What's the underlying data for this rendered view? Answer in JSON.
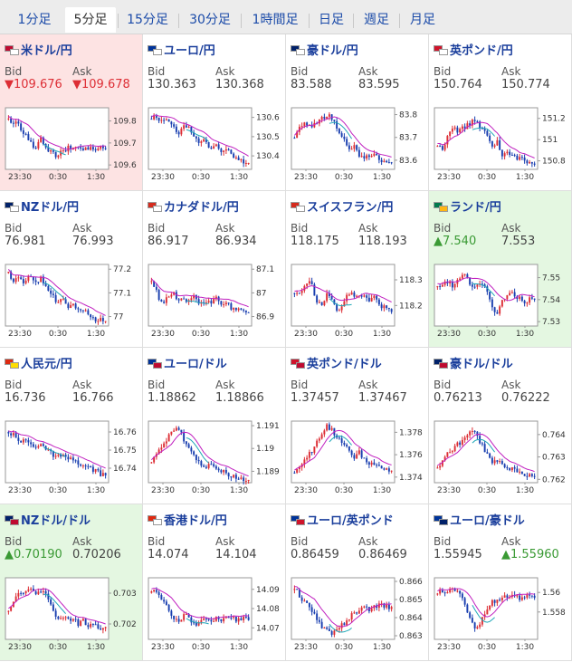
{
  "tabs": [
    {
      "label": "1分足",
      "active": false
    },
    {
      "label": "5分足",
      "active": true
    },
    {
      "label": "15分足",
      "active": false
    },
    {
      "label": "30分足",
      "active": false
    },
    {
      "label": "1時間足",
      "active": false
    },
    {
      "label": "日足",
      "active": false
    },
    {
      "label": "週足",
      "active": false
    },
    {
      "label": "月足",
      "active": false
    }
  ],
  "labels": {
    "bid": "Bid",
    "ask": "Ask"
  },
  "x_ticks": [
    "23:30",
    "0:30",
    "1:30"
  ],
  "colors": {
    "up": "#dd2e35",
    "down": "#1a3fb0",
    "ma": "#c020c0",
    "trend": "#20a8b8"
  },
  "pairs": [
    {
      "name": "米ドル/円",
      "flags": [
        "#bf0a30",
        "#ffffff"
      ],
      "bid": "109.676",
      "ask": "109.678",
      "dir": "down",
      "highlight": "red",
      "bid_arrow": true,
      "ask_arrow": true,
      "y_ticks": [
        "109.8",
        "109.7",
        "109.6"
      ],
      "range": [
        109.58,
        109.86
      ],
      "prices": [
        109.8,
        109.79,
        109.78,
        109.74,
        109.7,
        109.68,
        109.72,
        109.67,
        109.66,
        109.64,
        109.66,
        109.68,
        109.67,
        109.68,
        109.67,
        109.68,
        109.67,
        109.68,
        109.676
      ]
    },
    {
      "name": "ユーロ/円",
      "flags": [
        "#003399",
        "#ffffff"
      ],
      "bid": "130.363",
      "ask": "130.368",
      "dir": "",
      "highlight": "",
      "bid_arrow": false,
      "ask_arrow": false,
      "y_ticks": [
        "130.6",
        "130.5",
        "130.4"
      ],
      "range": [
        130.33,
        130.65
      ],
      "prices": [
        130.6,
        130.59,
        130.6,
        130.58,
        130.56,
        130.52,
        130.55,
        130.54,
        130.5,
        130.47,
        130.48,
        130.44,
        130.45,
        130.42,
        130.43,
        130.4,
        130.38,
        130.37,
        130.363
      ]
    },
    {
      "name": "豪ドル/円",
      "flags": [
        "#012169",
        "#ffffff"
      ],
      "bid": "83.588",
      "ask": "83.595",
      "dir": "",
      "highlight": "",
      "bid_arrow": false,
      "ask_arrow": false,
      "y_ticks": [
        "83.8",
        "83.7",
        "83.6"
      ],
      "range": [
        83.56,
        83.83
      ],
      "prices": [
        83.7,
        83.74,
        83.76,
        83.75,
        83.77,
        83.78,
        83.8,
        83.78,
        83.74,
        83.7,
        83.64,
        83.66,
        83.62,
        83.6,
        83.63,
        83.62,
        83.6,
        83.59,
        83.588
      ]
    },
    {
      "name": "英ポンド/円",
      "flags": [
        "#cf142b",
        "#ffffff"
      ],
      "bid": "150.764",
      "ask": "150.774",
      "dir": "",
      "highlight": "",
      "bid_arrow": false,
      "ask_arrow": false,
      "y_ticks": [
        "151.2",
        "151",
        "150.8"
      ],
      "range": [
        150.72,
        151.3
      ],
      "prices": [
        150.95,
        150.9,
        151.05,
        151.1,
        151.08,
        151.12,
        151.15,
        151.18,
        151.1,
        151.06,
        150.95,
        150.98,
        150.86,
        150.88,
        150.84,
        150.83,
        150.8,
        150.78,
        150.764
      ]
    },
    {
      "name": "NZドル/円",
      "flags": [
        "#012169",
        "#ffffff"
      ],
      "bid": "76.981",
      "ask": "76.993",
      "dir": "",
      "highlight": "",
      "bid_arrow": false,
      "ask_arrow": false,
      "y_ticks": [
        "77.2",
        "77.1",
        "77"
      ],
      "range": [
        76.96,
        77.22
      ],
      "prices": [
        77.18,
        77.15,
        77.16,
        77.14,
        77.17,
        77.15,
        77.16,
        77.13,
        77.1,
        77.06,
        77.08,
        77.04,
        77.05,
        77.02,
        77.03,
        77.0,
        76.99,
        76.985,
        76.981
      ]
    },
    {
      "name": "カナダドル/円",
      "flags": [
        "#d52b1e",
        "#ffffff"
      ],
      "bid": "86.917",
      "ask": "86.934",
      "dir": "",
      "highlight": "",
      "bid_arrow": false,
      "ask_arrow": false,
      "y_ticks": [
        "87.1",
        "87",
        "86.9"
      ],
      "range": [
        86.86,
        87.12
      ],
      "prices": [
        87.04,
        87.0,
        86.95,
        86.99,
        87.0,
        86.97,
        86.98,
        86.96,
        86.99,
        86.95,
        86.97,
        86.96,
        86.98,
        86.95,
        86.96,
        86.93,
        86.94,
        86.92,
        86.917
      ]
    },
    {
      "name": "スイスフラン/円",
      "flags": [
        "#d52b1e",
        "#ffffff"
      ],
      "bid": "118.175",
      "ask": "118.193",
      "dir": "",
      "highlight": "",
      "bid_arrow": false,
      "ask_arrow": false,
      "y_ticks": [
        "118.3",
        "118.2"
      ],
      "range": [
        118.12,
        118.36
      ],
      "prices": [
        118.25,
        118.24,
        118.28,
        118.3,
        118.22,
        118.2,
        118.24,
        118.23,
        118.18,
        118.21,
        118.25,
        118.24,
        118.23,
        118.25,
        118.22,
        118.24,
        118.2,
        118.19,
        118.175
      ]
    },
    {
      "name": "ランド/円",
      "flags": [
        "#007a4d",
        "#ffb612"
      ],
      "bid": "7.540",
      "ask": "7.553",
      "dir": "up",
      "highlight": "green",
      "bid_arrow": true,
      "ask_arrow": false,
      "y_ticks": [
        "7.55",
        "7.54",
        "7.53"
      ],
      "range": [
        7.528,
        7.556
      ],
      "prices": [
        7.546,
        7.547,
        7.548,
        7.546,
        7.549,
        7.551,
        7.547,
        7.546,
        7.548,
        7.545,
        7.538,
        7.532,
        7.54,
        7.542,
        7.543,
        7.541,
        7.538,
        7.54,
        7.54
      ]
    },
    {
      "name": "人民元/円",
      "flags": [
        "#de2910",
        "#ffde00"
      ],
      "bid": "16.736",
      "ask": "16.766",
      "dir": "",
      "highlight": "",
      "bid_arrow": false,
      "ask_arrow": false,
      "y_ticks": [
        "16.76",
        "16.75",
        "16.74"
      ],
      "range": [
        16.732,
        16.766
      ],
      "prices": [
        16.76,
        16.758,
        16.754,
        16.756,
        16.753,
        16.752,
        16.754,
        16.75,
        16.748,
        16.746,
        16.747,
        16.744,
        16.745,
        16.742,
        16.741,
        16.74,
        16.739,
        16.737,
        16.736
      ]
    },
    {
      "name": "ユーロ/ドル",
      "flags": [
        "#003399",
        "#bf0a30"
      ],
      "bid": "1.18862",
      "ask": "1.18866",
      "dir": "",
      "highlight": "",
      "bid_arrow": false,
      "ask_arrow": false,
      "y_ticks": [
        "1.191",
        "1.19",
        "1.189"
      ],
      "range": [
        1.1885,
        1.1912
      ],
      "prices": [
        1.1895,
        1.1898,
        1.19,
        1.1905,
        1.1908,
        1.1909,
        1.1904,
        1.1901,
        1.1896,
        1.1893,
        1.1892,
        1.1894,
        1.1891,
        1.189,
        1.1889,
        1.1888,
        1.1887,
        1.18865,
        1.18862
      ]
    },
    {
      "name": "英ポンド/ドル",
      "flags": [
        "#cf142b",
        "#bf0a30"
      ],
      "bid": "1.37457",
      "ask": "1.37467",
      "dir": "",
      "highlight": "",
      "bid_arrow": false,
      "ask_arrow": false,
      "y_ticks": [
        "1.378",
        "1.376",
        "1.374"
      ],
      "range": [
        1.3735,
        1.379
      ],
      "prices": [
        1.3745,
        1.375,
        1.3758,
        1.3762,
        1.377,
        1.378,
        1.3785,
        1.3782,
        1.3775,
        1.3768,
        1.3765,
        1.3758,
        1.3762,
        1.3756,
        1.3752,
        1.375,
        1.3748,
        1.3746,
        1.37457
      ]
    },
    {
      "name": "豪ドル/ドル",
      "flags": [
        "#012169",
        "#bf0a30"
      ],
      "bid": "0.76213",
      "ask": "0.76222",
      "dir": "",
      "highlight": "",
      "bid_arrow": false,
      "ask_arrow": false,
      "y_ticks": [
        "0.764",
        "0.763",
        "0.762"
      ],
      "range": [
        0.76185,
        0.7646
      ],
      "prices": [
        0.7625,
        0.7628,
        0.7632,
        0.7634,
        0.7636,
        0.7639,
        0.7642,
        0.7641,
        0.7636,
        0.7632,
        0.7628,
        0.7629,
        0.7626,
        0.7624,
        0.7625,
        0.7623,
        0.7622,
        0.76215,
        0.76213
      ]
    },
    {
      "name": "NZドル/ドル",
      "flags": [
        "#012169",
        "#bf0a30"
      ],
      "bid": "0.70190",
      "ask": "0.70206",
      "dir": "up",
      "highlight": "green",
      "bid_arrow": true,
      "ask_arrow": false,
      "y_ticks": [
        "0.703",
        "0.702"
      ],
      "range": [
        0.7015,
        0.7035
      ],
      "prices": [
        0.7025,
        0.7027,
        0.703,
        0.7031,
        0.7032,
        0.7029,
        0.7031,
        0.703,
        0.7025,
        0.7022,
        0.7023,
        0.7021,
        0.7022,
        0.702,
        0.7021,
        0.7019,
        0.702,
        0.70185,
        0.7019
      ]
    },
    {
      "name": "香港ドル/円",
      "flags": [
        "#de2910",
        "#ffffff"
      ],
      "bid": "14.074",
      "ask": "14.104",
      "dir": "",
      "highlight": "",
      "bid_arrow": false,
      "ask_arrow": false,
      "y_ticks": [
        "14.09",
        "14.08",
        "14.07"
      ],
      "range": [
        14.064,
        14.096
      ],
      "prices": [
        14.09,
        14.088,
        14.085,
        14.08,
        14.076,
        14.072,
        14.078,
        14.074,
        14.071,
        14.074,
        14.076,
        14.073,
        14.075,
        14.074,
        14.076,
        14.075,
        14.074,
        14.075,
        14.074
      ]
    },
    {
      "name": "ユーロ/英ポンド",
      "flags": [
        "#003399",
        "#cf142b"
      ],
      "bid": "0.86459",
      "ask": "0.86469",
      "dir": "",
      "highlight": "",
      "bid_arrow": false,
      "ask_arrow": false,
      "y_ticks": [
        "0.866",
        "0.865",
        "0.864",
        "0.863"
      ],
      "range": [
        0.8628,
        0.8662
      ],
      "prices": [
        0.8656,
        0.8652,
        0.8648,
        0.8645,
        0.864,
        0.8635,
        0.8633,
        0.8631,
        0.8634,
        0.8636,
        0.864,
        0.8642,
        0.8644,
        0.8645,
        0.8644,
        0.8646,
        0.8647,
        0.8646,
        0.86459
      ]
    },
    {
      "name": "ユーロ/豪ドル",
      "flags": [
        "#003399",
        "#012169"
      ],
      "bid": "1.55945",
      "ask": "1.55960",
      "dir": "up",
      "highlight": "",
      "bid_arrow": false,
      "ask_arrow": true,
      "y_ticks": [
        "1.56",
        "1.558"
      ],
      "range": [
        1.5552,
        1.5615
      ],
      "prices": [
        1.5598,
        1.5602,
        1.56,
        1.5604,
        1.5598,
        1.559,
        1.5575,
        1.5562,
        1.557,
        1.558,
        1.559,
        1.5592,
        1.5596,
        1.5595,
        1.5598,
        1.5594,
        1.5596,
        1.5595,
        1.55945
      ]
    }
  ]
}
